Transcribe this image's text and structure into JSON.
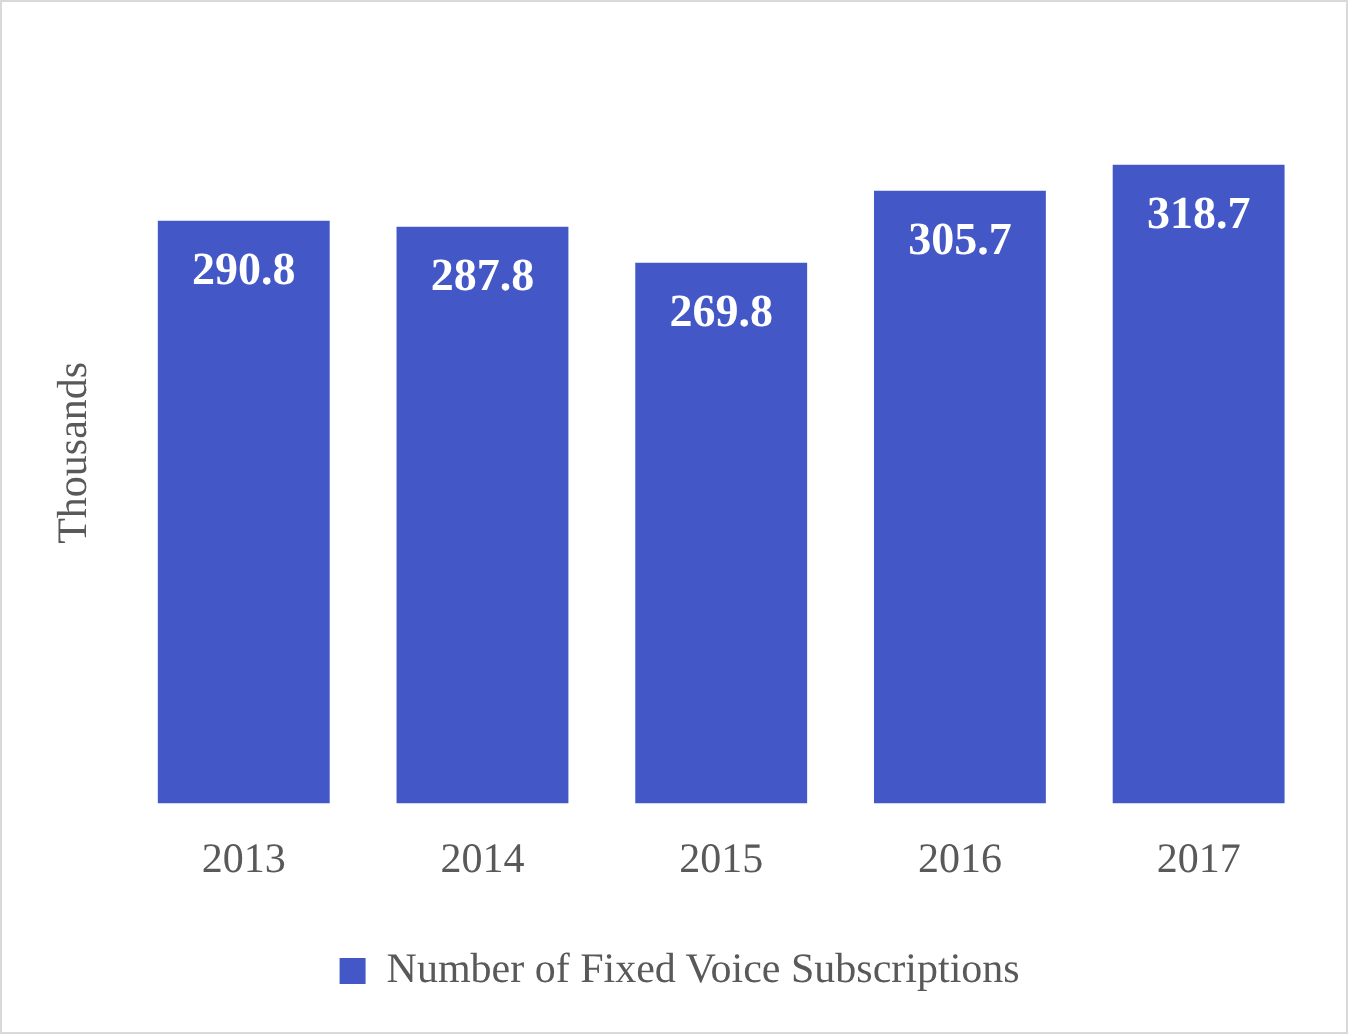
{
  "chart_data": {
    "type": "bar",
    "ylabel": "Thousands",
    "categories": [
      "2013",
      "2014",
      "2015",
      "2016",
      "2017"
    ],
    "series": [
      {
        "name": "Number of Fixed Voice Subscriptions",
        "color": "#4358c6",
        "values": [
          290.8,
          287.8,
          269.8,
          305.7,
          318.7
        ]
      }
    ],
    "data_labels": true,
    "legend": "bottom",
    "grid": false
  }
}
